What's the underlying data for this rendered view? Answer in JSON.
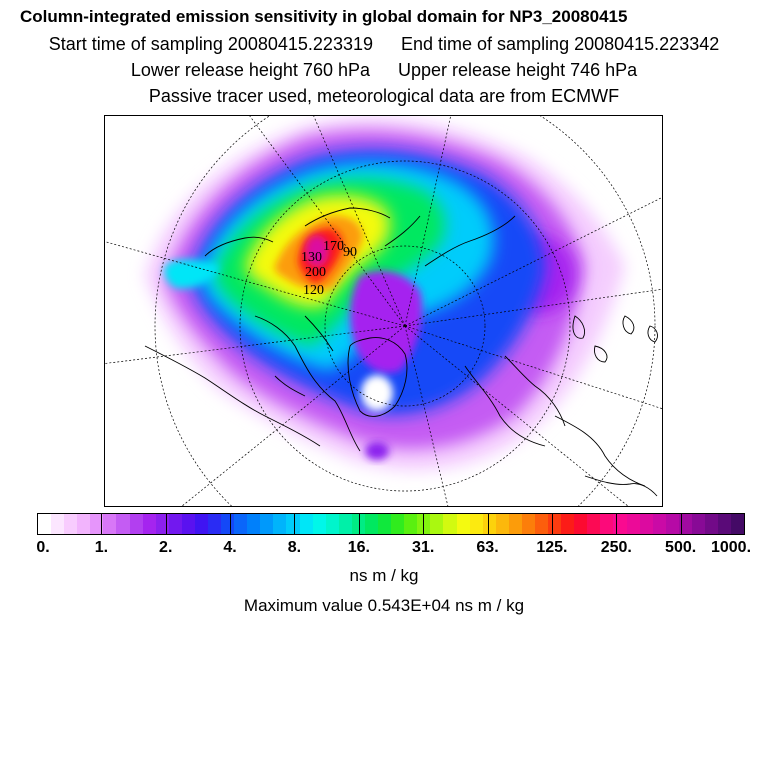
{
  "header": {
    "title": "Column-integrated emission sensitivity in global domain for NP3_20080415",
    "start_time": "Start time of sampling 20080415.223319",
    "end_time": "End time of sampling 20080415.223342",
    "lower_release": "Lower release height  760 hPa",
    "upper_release": "Upper release height  746 hPa",
    "tracer_note": "Passive tracer used, meteorological data are from ECMWF"
  },
  "map": {
    "projection": "polar-stereographic-north",
    "plume_labels": [
      "130",
      "90",
      "120",
      "170",
      "200"
    ]
  },
  "colorbar": {
    "colors": [
      "#ffffff",
      "#fce6ff",
      "#f8ccfe",
      "#f2b4fd",
      "#e695fb",
      "#d877f7",
      "#c45cf3",
      "#b23ff0",
      "#a524ef",
      "#8c20ee",
      "#7218ef",
      "#5a12f0",
      "#3f14f2",
      "#2a2cf4",
      "#1448f7",
      "#0a66fa",
      "#0080fb",
      "#0099fb",
      "#00b4fb",
      "#00ccfb",
      "#00e6f7",
      "#00f7e9",
      "#00f5cc",
      "#00f0a8",
      "#00ec84",
      "#00e860",
      "#10e83c",
      "#30ec1e",
      "#5af010",
      "#82f410",
      "#aaf810",
      "#d2fa10",
      "#f4fa10",
      "#fcea10",
      "#fcd20c",
      "#fcb80c",
      "#fc9c0a",
      "#fc7e0a",
      "#fc5e0c",
      "#fc3c10",
      "#fc1c18",
      "#fc0a30",
      "#fc0a54",
      "#fc0a7a",
      "#fa0a90",
      "#ec0a98",
      "#dc0aa0",
      "#ca0aa6",
      "#b60aa6",
      "#a00aa0",
      "#880a96",
      "#720a88",
      "#5a0a78",
      "#440a66"
    ],
    "tick_labels": [
      "0.",
      "1.",
      "2.",
      "4.",
      "8.",
      "16.",
      "31.",
      "63.",
      "125.",
      "250.",
      "500.",
      "1000."
    ],
    "unit": "ns m / kg"
  },
  "max_value": "Maximum value  0.543E+04 ns m / kg"
}
